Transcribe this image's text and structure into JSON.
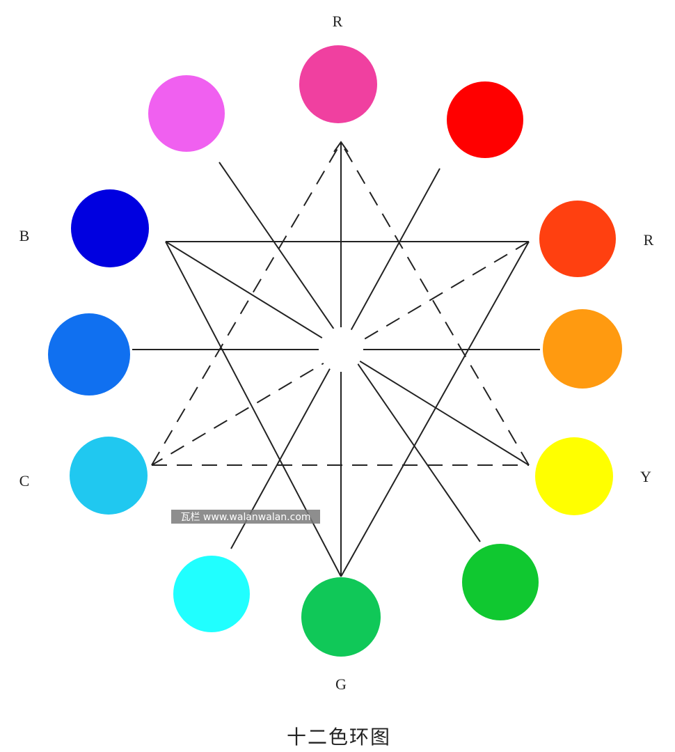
{
  "caption": "十二色环图",
  "watermark": "瓦栏 www.walanwalan.com",
  "labels": {
    "top": "R",
    "right": "R",
    "b": "B",
    "c": "C",
    "y": "Y",
    "g": "G"
  },
  "colors": {
    "magenta_pink": "#f040a0",
    "red": "#ff0000",
    "red_orange": "#ff4010",
    "orange": "#ff9a10",
    "yellow": "#ffff00",
    "green": "#10c830",
    "green_blue": "#10c858",
    "cyan": "#20ffff",
    "sky_blue": "#20c8f0",
    "mid_blue": "#1070f0",
    "blue": "#0000e0",
    "violet_pink": "#f060f0"
  }
}
